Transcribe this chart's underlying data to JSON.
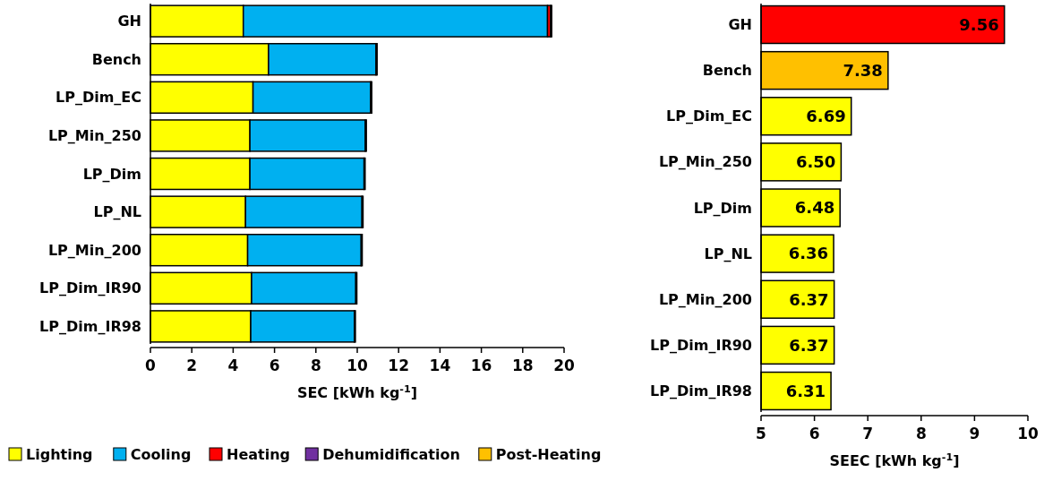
{
  "chart_data": [
    {
      "type": "bar",
      "orientation": "horizontal",
      "stacked": true,
      "xlabel": "SEC [kWh kg$^{-1}$]",
      "categories": [
        "GH",
        "Bench",
        "LP_Dim_EC",
        "LP_Min_250",
        "LP_Dim",
        "LP_NL",
        "LP_Min_200",
        "LP_Dim_IR90",
        "LP_Dim_IR98"
      ],
      "series": [
        {
          "name": "Lighting",
          "color": "#ffff00",
          "values": [
            4.49,
            5.71,
            4.96,
            4.81,
            4.81,
            4.6,
            4.7,
            4.89,
            4.85
          ]
        },
        {
          "name": "Cooling",
          "color": "#00b0f0",
          "values": [
            14.71,
            5.2,
            5.69,
            5.58,
            5.52,
            5.63,
            5.49,
            5.04,
            5.01
          ]
        },
        {
          "name": "Heating",
          "color": "#ff0000",
          "values": [
            0.15,
            0,
            0,
            0,
            0,
            0,
            0,
            0,
            0
          ]
        },
        {
          "name": "Dehumidification",
          "color": "#7030a0",
          "values": [
            0.05,
            0.05,
            0.05,
            0.05,
            0.05,
            0.05,
            0.05,
            0.05,
            0.05
          ]
        },
        {
          "name": "Post-Heating",
          "color": "#ffc000",
          "values": [
            0,
            0,
            0,
            0,
            0,
            0,
            0,
            0,
            0
          ]
        }
      ],
      "xlim": [
        0,
        20
      ],
      "xticks": [
        0,
        2,
        4,
        6,
        8,
        10,
        12,
        14,
        16,
        18,
        20
      ],
      "legend": "bottom",
      "grid": false
    },
    {
      "type": "bar",
      "orientation": "horizontal",
      "xlabel": "SEEC [kWh kg$^{-1}$]",
      "categories": [
        "GH",
        "Bench",
        "LP_Dim_EC",
        "LP_Min_250",
        "LP_Dim",
        "LP_NL",
        "LP_Min_200",
        "LP_Dim_IR90",
        "LP_Dim_IR98"
      ],
      "values": [
        9.56,
        7.38,
        6.69,
        6.5,
        6.48,
        6.36,
        6.37,
        6.37,
        6.31
      ],
      "colors": [
        "#ff0000",
        "#ffc000",
        "#ffff00",
        "#ffff00",
        "#ffff00",
        "#ffff00",
        "#ffff00",
        "#ffff00",
        "#ffff00"
      ],
      "value_labels": [
        "9.56",
        "7.38",
        "6.69",
        "6.50",
        "6.48",
        "6.36",
        "6.37",
        "6.37",
        "6.31"
      ],
      "xlim": [
        5,
        10
      ],
      "xticks": [
        5,
        6,
        7,
        8,
        9,
        10
      ],
      "grid": false
    }
  ]
}
